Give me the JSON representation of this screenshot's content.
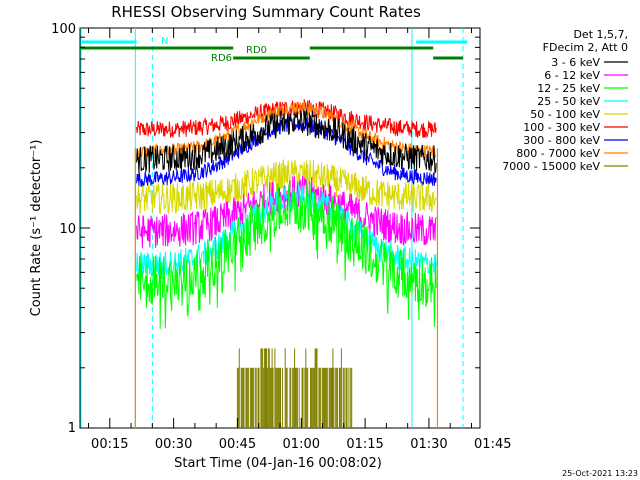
{
  "chart_data": {
    "type": "line",
    "title": "RHESSI Observing Summary Count Rates",
    "xlabel": "Start Time (04-Jan-16 00:08:02)",
    "ylabel": "Count Rate (s⁻¹ detector⁻¹)",
    "yscale": "log",
    "ylim": [
      1,
      100
    ],
    "xlim_minutes": [
      8,
      102
    ],
    "y_ticks": [
      {
        "label": "1",
        "value": 1
      },
      {
        "label": "10",
        "value": 10
      },
      {
        "label": "100",
        "value": 100
      }
    ],
    "x_ticks": [
      {
        "label": "00:15",
        "minutes": 15
      },
      {
        "label": "00:30",
        "minutes": 30
      },
      {
        "label": "00:45",
        "minutes": 45
      },
      {
        "label": "01:00",
        "minutes": 60
      },
      {
        "label": "01:15",
        "minutes": 75
      },
      {
        "label": "01:30",
        "minutes": 90
      },
      {
        "label": "01:45",
        "minutes": 105
      }
    ],
    "legend_header": [
      "Det 1,5,7,",
      "FDecim 2, Att 0"
    ],
    "legend_position": "right",
    "data_start_min": 21,
    "data_end_min": 92,
    "peak_center_min": 59,
    "series": [
      {
        "name": "3 - 6 keV",
        "color": "#000000",
        "base": 22,
        "peak": 34,
        "spread": 0.16
      },
      {
        "name": "6 - 12 keV",
        "color": "#ff00ff",
        "base": 9.6,
        "peak": 15,
        "spread": 0.2
      },
      {
        "name": "12 - 25 keV",
        "color": "#00ff00",
        "base": 5.4,
        "peak": 13,
        "spread": 0.3
      },
      {
        "name": "25 - 50 keV",
        "color": "#00ffff",
        "base": 6.5,
        "peak": 14,
        "spread": 0.16
      },
      {
        "name": "50 - 100 keV",
        "color": "#d8d800",
        "base": 14,
        "peak": 18.5,
        "spread": 0.18
      },
      {
        "name": "100 - 300 keV",
        "color": "#ff0000",
        "base": 31,
        "peak": 40,
        "spread": 0.1
      },
      {
        "name": "300 - 800 keV",
        "color": "#0000ff",
        "base": 17.5,
        "peak": 33,
        "spread": 0.09
      },
      {
        "name": "800 - 7000 keV",
        "color": "#ff7f00",
        "base": 24,
        "peak": 40,
        "spread": 0.08
      },
      {
        "name": "7000 - 15000 keV",
        "color": "#808000",
        "base": 0,
        "peak": 2.5,
        "spread": 0
      }
    ],
    "annotations": {
      "night_label": "N",
      "rd0_label": "RD0",
      "rd6_label": "RD6",
      "timestamp": "25-Oct-2021 13:23"
    },
    "colors": {
      "night_bar": "#00ffff",
      "decim_bar": "#008000",
      "saa_edge": "#00ffff",
      "attenuator_edge": "#ff7f00"
    }
  }
}
